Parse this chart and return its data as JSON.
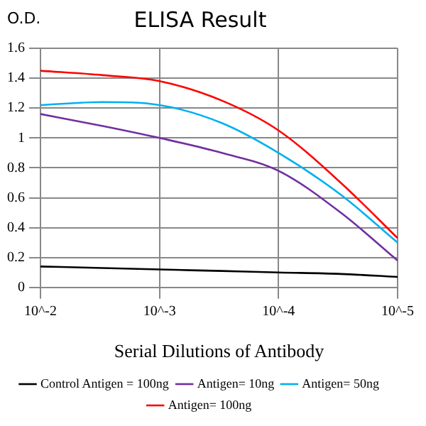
{
  "chart_data": {
    "type": "line",
    "title": "ELISA Result",
    "ylabel": "O.D.",
    "xlabel": "Serial Dilutions of Antibody",
    "x": [
      0.01,
      0.003,
      0.001,
      0.0003,
      0.0001,
      3e-05,
      1e-05
    ],
    "log": "x",
    "xlim": [
      0.01,
      1e-05
    ],
    "xticks": [
      {
        "value": 0.01,
        "label": "10^-2"
      },
      {
        "value": 0.001,
        "label": "10^-3"
      },
      {
        "value": 0.0001,
        "label": "10^-4"
      },
      {
        "value": 1e-05,
        "label": "10^-5"
      }
    ],
    "ylim": [
      0,
      1.6
    ],
    "yticks": [
      0,
      0.2,
      0.4,
      0.6,
      0.8,
      1,
      1.2,
      1.4,
      1.6
    ],
    "grid": true,
    "legend": "bottom",
    "marker": "none",
    "series": [
      {
        "name": "Control Antigen = 100ng",
        "color": "#000000",
        "values": [
          0.14,
          0.13,
          0.12,
          0.11,
          0.1,
          0.09,
          0.07
        ]
      },
      {
        "name": "Antigen= 10ng",
        "color": "#7030a0",
        "values": [
          1.16,
          1.08,
          1.0,
          0.9,
          0.78,
          0.5,
          0.18
        ]
      },
      {
        "name": "Antigen= 50ng",
        "color": "#00b0f0",
        "values": [
          1.22,
          1.24,
          1.22,
          1.1,
          0.9,
          0.62,
          0.3
        ]
      },
      {
        "name": "Antigen= 100ng",
        "color": "#ff0000",
        "values": [
          1.45,
          1.42,
          1.38,
          1.25,
          1.05,
          0.7,
          0.33
        ]
      }
    ]
  }
}
